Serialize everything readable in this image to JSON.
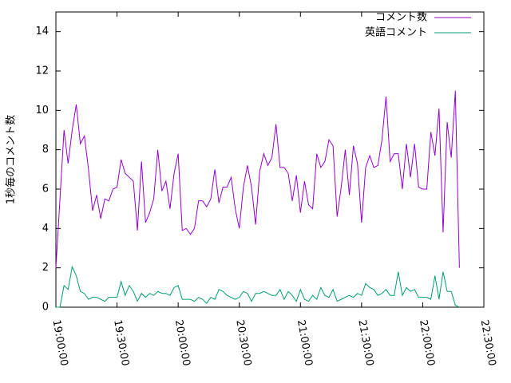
{
  "chart_data": {
    "type": "line",
    "y_label": "1秒毎のコメント数",
    "x": [
      "19:00:00",
      "19:02:00",
      "19:04:00",
      "19:06:00",
      "19:08:00",
      "19:10:00",
      "19:12:00",
      "19:14:00",
      "19:16:00",
      "19:18:00",
      "19:20:00",
      "19:22:00",
      "19:24:00",
      "19:26:00",
      "19:28:00",
      "19:30:00",
      "19:32:00",
      "19:34:00",
      "19:36:00",
      "19:38:00",
      "19:40:00",
      "19:42:00",
      "19:44:00",
      "19:46:00",
      "19:48:00",
      "19:50:00",
      "19:52:00",
      "19:54:00",
      "19:56:00",
      "19:58:00",
      "20:00:00",
      "20:02:00",
      "20:04:00",
      "20:06:00",
      "20:08:00",
      "20:10:00",
      "20:12:00",
      "20:14:00",
      "20:16:00",
      "20:18:00",
      "20:20:00",
      "20:22:00",
      "20:24:00",
      "20:26:00",
      "20:28:00",
      "20:30:00",
      "20:32:00",
      "20:34:00",
      "20:36:00",
      "20:38:00",
      "20:40:00",
      "20:42:00",
      "20:44:00",
      "20:46:00",
      "20:48:00",
      "20:50:00",
      "20:52:00",
      "20:54:00",
      "20:56:00",
      "20:58:00",
      "21:00:00",
      "21:02:00",
      "21:04:00",
      "21:06:00",
      "21:08:00",
      "21:10:00",
      "21:12:00",
      "21:14:00",
      "21:16:00",
      "21:18:00",
      "21:20:00",
      "21:22:00",
      "21:24:00",
      "21:26:00",
      "21:28:00",
      "21:30:00",
      "21:32:00",
      "21:34:00",
      "21:36:00",
      "21:38:00",
      "21:40:00",
      "21:42:00",
      "21:44:00",
      "21:46:00",
      "21:48:00",
      "21:50:00",
      "21:52:00",
      "21:54:00",
      "21:56:00",
      "21:58:00",
      "22:00:00",
      "22:02:00",
      "22:04:00",
      "22:06:00",
      "22:08:00",
      "22:10:00",
      "22:12:00",
      "22:14:00",
      "22:16:00",
      "22:18:00"
    ],
    "series": [
      {
        "name": "コメント数",
        "color": "#9400d3",
        "values": [
          2,
          5.5,
          9,
          7.3,
          9,
          10.3,
          8.3,
          8.7,
          7,
          4.9,
          5.7,
          4.5,
          5.5,
          5.4,
          6,
          6.1,
          7.5,
          6.8,
          6.6,
          6.4,
          3.9,
          7.4,
          4.3,
          4.8,
          5.5,
          8,
          5.9,
          6.4,
          5,
          6.8,
          7.8,
          3.9,
          4,
          3.7,
          4,
          5.4,
          5.4,
          5.1,
          5.5,
          7,
          5.3,
          6.1,
          6.1,
          6.6,
          5,
          4,
          6.1,
          7.2,
          6.1,
          4.2,
          6.9,
          7.8,
          7.2,
          7.6,
          9.3,
          7.1,
          7.1,
          6.8,
          5.4,
          6.7,
          4.8,
          6.4,
          5.2,
          5,
          7.8,
          7.1,
          7.4,
          8.5,
          8.2,
          4.6,
          6.1,
          8,
          5.7,
          8.2,
          7.3,
          4.3,
          7.1,
          7.7,
          7.1,
          7.2,
          8.5,
          10.7,
          7.4,
          7.8,
          7.8,
          6,
          8.3,
          6.6,
          8.3,
          6.1,
          6,
          6,
          8.9,
          7.7,
          10.1,
          3.8,
          9.4,
          7.6,
          11,
          2
        ]
      },
      {
        "name": "英語コメント",
        "color": "#009e73",
        "values": [
          0,
          0,
          1.1,
          0.9,
          2.05,
          1.6,
          0.8,
          0.7,
          0.4,
          0.5,
          0.5,
          0.4,
          0.3,
          0.5,
          0.5,
          0.5,
          1.3,
          0.6,
          1.1,
          0.8,
          0.3,
          0.7,
          0.5,
          0.7,
          0.6,
          0.8,
          0.7,
          0.7,
          0.6,
          1,
          1.1,
          0.4,
          0.4,
          0.4,
          0.3,
          0.5,
          0.4,
          0.2,
          0.5,
          0.4,
          0.9,
          0.8,
          0.6,
          0.5,
          0.4,
          0.5,
          0.8,
          0.7,
          0.3,
          0.7,
          0.7,
          0.8,
          0.7,
          0.6,
          0.6,
          0.9,
          0.4,
          0.8,
          0.6,
          0.3,
          0.9,
          0.4,
          0.3,
          0.6,
          0.4,
          1,
          0.6,
          0.5,
          0.9,
          0.3,
          0.4,
          0.5,
          0.6,
          0.5,
          0.7,
          0.6,
          1.2,
          1,
          0.9,
          0.6,
          0.7,
          0.9,
          0.6,
          0.6,
          1.8,
          0.6,
          1,
          0.8,
          0.9,
          0.5,
          0.5,
          0.5,
          0.4,
          1.6,
          0.4,
          1.8,
          0.8,
          0.8,
          0.1,
          0
        ]
      }
    ],
    "xlim": [
      "19:00:00",
      "22:30:00"
    ],
    "xticks": [
      "19:00:00",
      "19:30:00",
      "20:00:00",
      "20:30:00",
      "21:00:00",
      "21:30:00",
      "22:00:00",
      "22:30:00"
    ],
    "ylim": [
      0,
      15
    ],
    "yticks": [
      0,
      2,
      4,
      6,
      8,
      10,
      12,
      14
    ],
    "legend": "top-right"
  }
}
